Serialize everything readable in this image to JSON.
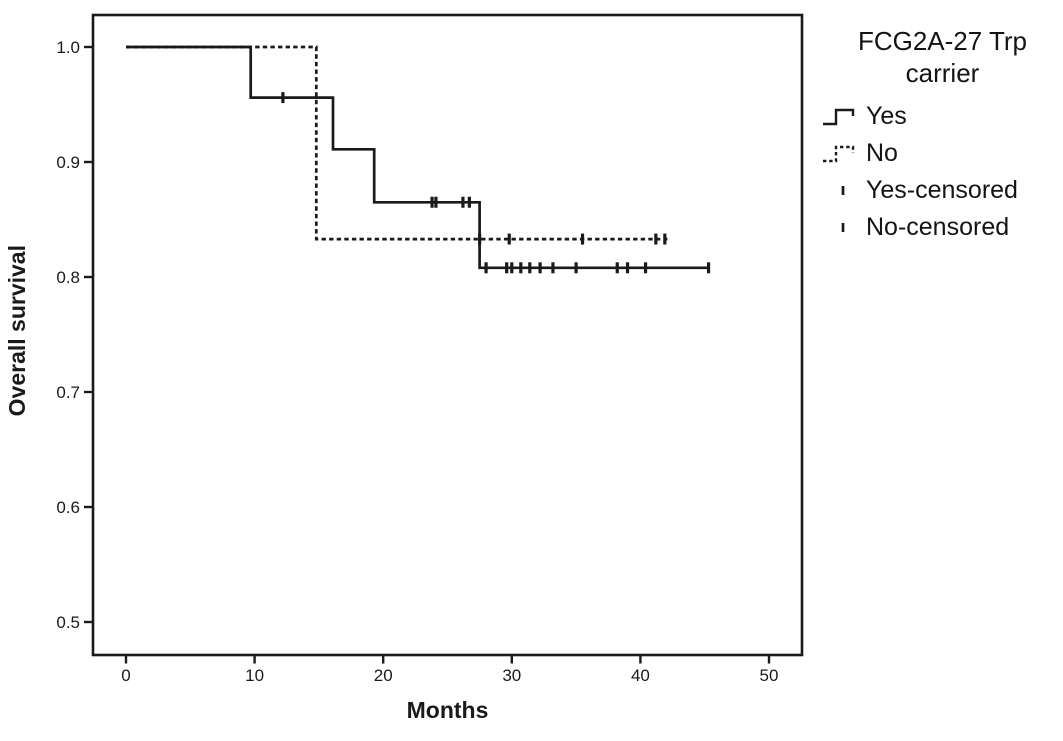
{
  "axes": {
    "x_title": "Months",
    "y_title": "Overall survival"
  },
  "legend": {
    "title_lines": [
      "FCG2A-27 Trp",
      "carrier"
    ],
    "items": [
      {
        "label": "Yes",
        "symbol": "solid-step-line"
      },
      {
        "label": "No",
        "symbol": "dashed-step-line"
      },
      {
        "label": "Yes-censored",
        "symbol": "censor-tick"
      },
      {
        "label": "No-censored",
        "symbol": "censor-tick"
      }
    ]
  },
  "chart_data": {
    "type": "line",
    "subtype": "kaplan-meier-step",
    "title": "",
    "xlabel": "Months",
    "ylabel": "Overall survival",
    "xlim": [
      -2.7,
      52.6
    ],
    "ylim": [
      0.471,
      1.029
    ],
    "xticks": [
      0,
      10,
      20,
      30,
      40,
      50
    ],
    "xtick_labels": [
      "0",
      "10",
      "20",
      "30",
      "40",
      "50"
    ],
    "yticks": [
      1.0,
      0.9,
      0.8,
      0.7,
      0.6,
      0.5
    ],
    "ytick_labels": [
      "1.0",
      "0.9",
      "0.8",
      "0.7",
      "0.6",
      "0.5"
    ],
    "grid": false,
    "legend_position": "right",
    "ink_color": "#1a1a1a",
    "background_color": "#ffffff",
    "series": [
      {
        "name": "Yes",
        "style": "solid",
        "color": "#1a1a1a",
        "steps": [
          [
            0,
            1.0
          ],
          [
            9.7,
            1.0
          ],
          [
            9.7,
            0.956
          ],
          [
            16.1,
            0.956
          ],
          [
            16.1,
            0.911
          ],
          [
            19.3,
            0.911
          ],
          [
            19.3,
            0.865
          ],
          [
            27.5,
            0.865
          ],
          [
            27.5,
            0.808
          ],
          [
            45.3,
            0.808
          ]
        ],
        "censored": [
          [
            12.2,
            0.956
          ],
          [
            23.8,
            0.865
          ],
          [
            24.1,
            0.865
          ],
          [
            26.2,
            0.865
          ],
          [
            26.7,
            0.865
          ],
          [
            28.0,
            0.808
          ],
          [
            29.6,
            0.808
          ],
          [
            30.0,
            0.808
          ],
          [
            30.7,
            0.808
          ],
          [
            31.4,
            0.808
          ],
          [
            32.2,
            0.808
          ],
          [
            33.2,
            0.808
          ],
          [
            35.0,
            0.808
          ],
          [
            38.2,
            0.808
          ],
          [
            39.0,
            0.808
          ],
          [
            40.4,
            0.808
          ],
          [
            45.3,
            0.808
          ]
        ]
      },
      {
        "name": "No",
        "style": "dashed",
        "color": "#1a1a1a",
        "steps": [
          [
            0,
            1.0
          ],
          [
            14.8,
            1.0
          ],
          [
            14.8,
            0.833
          ],
          [
            42.1,
            0.833
          ]
        ],
        "censored": [
          [
            27.5,
            0.833
          ],
          [
            29.8,
            0.833
          ],
          [
            35.5,
            0.833
          ],
          [
            41.2,
            0.833
          ],
          [
            41.9,
            0.833
          ]
        ]
      }
    ]
  }
}
